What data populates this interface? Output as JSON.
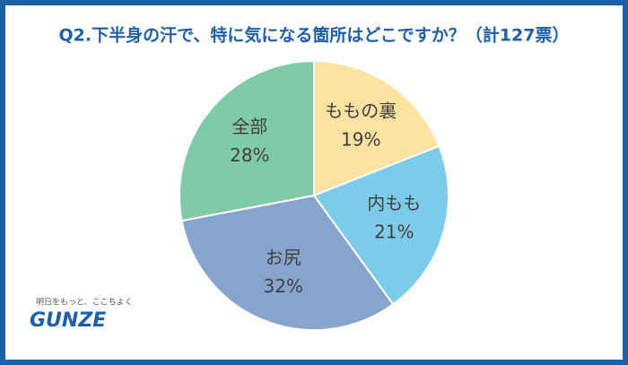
{
  "chart_data": {
    "type": "pie",
    "title": "Q2.下半身の汗で、特に気になる箇所はどこですか？（計127票）",
    "categories": [
      "ももの裏",
      "内もも",
      "お尻",
      "全部"
    ],
    "values": [
      19,
      21,
      32,
      28
    ],
    "value_labels": [
      "19%",
      "21%",
      "32%",
      "28%"
    ],
    "colors": [
      "#fde2a2",
      "#7dcbea",
      "#87a4cd",
      "#80cba7"
    ]
  },
  "logo": {
    "tagline": "明日をもっと、ここちよく",
    "name": "GUNZE"
  }
}
